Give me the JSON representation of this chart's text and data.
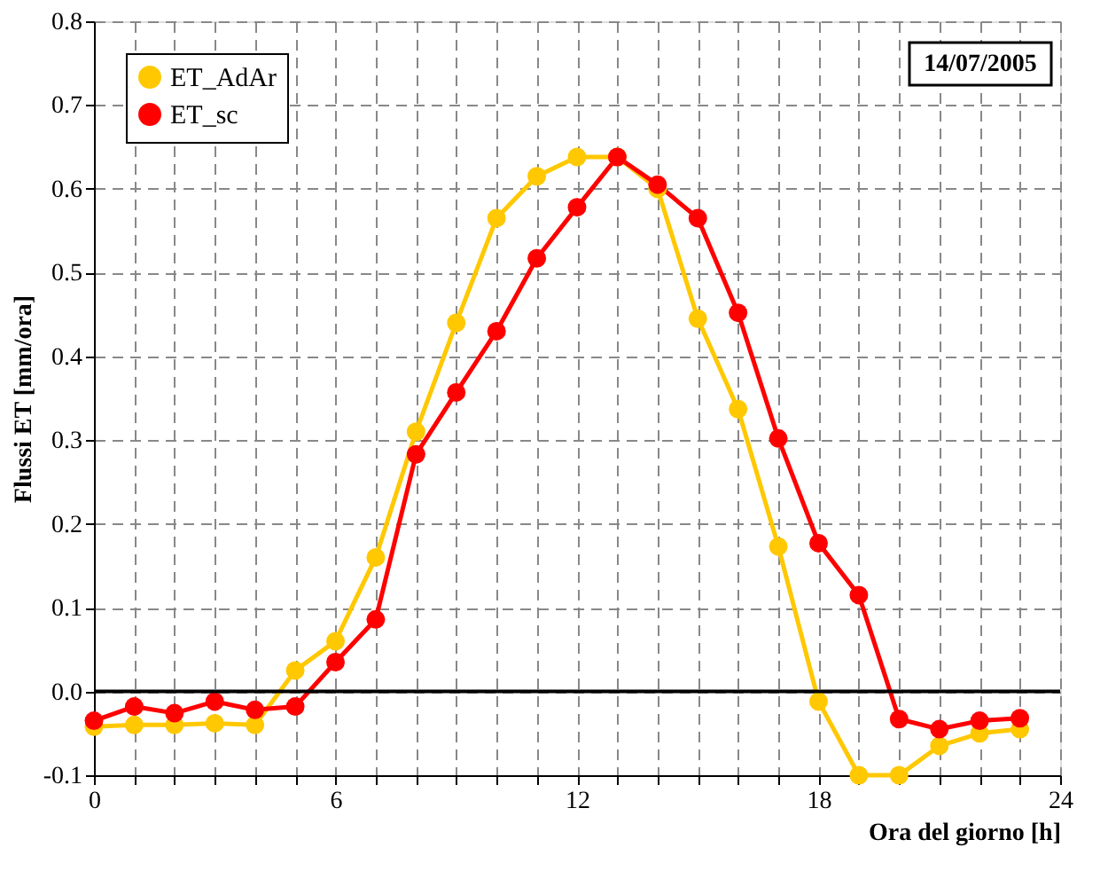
{
  "chart_data": {
    "type": "line",
    "xlabel": "Ora del giorno [h]",
    "ylabel": "Flussi ET [mm/ora]",
    "annotations": [
      "14/07/2005"
    ],
    "x": [
      0,
      1,
      2,
      3,
      4,
      5,
      6,
      7,
      8,
      9,
      10,
      11,
      12,
      13,
      14,
      15,
      16,
      17,
      18,
      19,
      20,
      21,
      22,
      23
    ],
    "series": [
      {
        "name": "ET_AdAr",
        "color": "#ffc800",
        "values": [
          -0.042,
          -0.04,
          -0.04,
          -0.038,
          -0.04,
          0.025,
          0.06,
          0.16,
          0.31,
          0.44,
          0.565,
          0.615,
          0.638,
          0.638,
          0.6,
          0.445,
          0.337,
          0.173,
          -0.012,
          -0.1,
          -0.1,
          -0.065,
          -0.05,
          -0.045
        ]
      },
      {
        "name": "ET_sc",
        "color": "#ff0000",
        "values": [
          -0.035,
          -0.018,
          -0.026,
          -0.012,
          -0.022,
          -0.018,
          0.035,
          0.086,
          0.283,
          0.357,
          0.43,
          0.517,
          0.578,
          0.638,
          0.605,
          0.565,
          0.452,
          0.302,
          0.177,
          0.115,
          -0.033,
          -0.045,
          -0.035,
          -0.032
        ]
      }
    ],
    "xlim": [
      0,
      24
    ],
    "xticks": [
      0,
      {
        "value": 1,
        "label": null
      },
      {
        "value": 2,
        "label": null
      },
      {
        "value": 3,
        "label": null
      },
      {
        "value": 4,
        "label": null
      },
      {
        "value": 5,
        "label": null
      },
      6,
      {
        "value": 7,
        "label": null
      },
      {
        "value": 8,
        "label": null
      },
      {
        "value": 9,
        "label": null
      },
      {
        "value": 10,
        "label": null
      },
      {
        "value": 11,
        "label": null
      },
      12,
      {
        "value": 13,
        "label": null
      },
      {
        "value": 14,
        "label": null
      },
      {
        "value": 15,
        "label": null
      },
      {
        "value": 16,
        "label": null
      },
      {
        "value": 17,
        "label": null
      },
      18,
      {
        "value": 19,
        "label": null
      },
      {
        "value": 20,
        "label": null
      },
      {
        "value": 21,
        "label": null
      },
      {
        "value": 22,
        "label": null
      },
      {
        "value": 23,
        "label": null
      },
      24
    ],
    "ylim": [
      -0.1,
      0.8
    ],
    "yticks": [
      -0.1,
      {
        "value": 0,
        "label": "0.0"
      },
      0.1,
      0.2,
      0.3,
      0.4,
      0.5,
      0.6,
      0.7,
      0.8
    ],
    "ref_lines": [
      {
        "axis": "y",
        "value": 0,
        "color": "#000000"
      }
    ],
    "grid": true,
    "legend": "top left",
    "marker": "circle",
    "line_style": "solid"
  }
}
